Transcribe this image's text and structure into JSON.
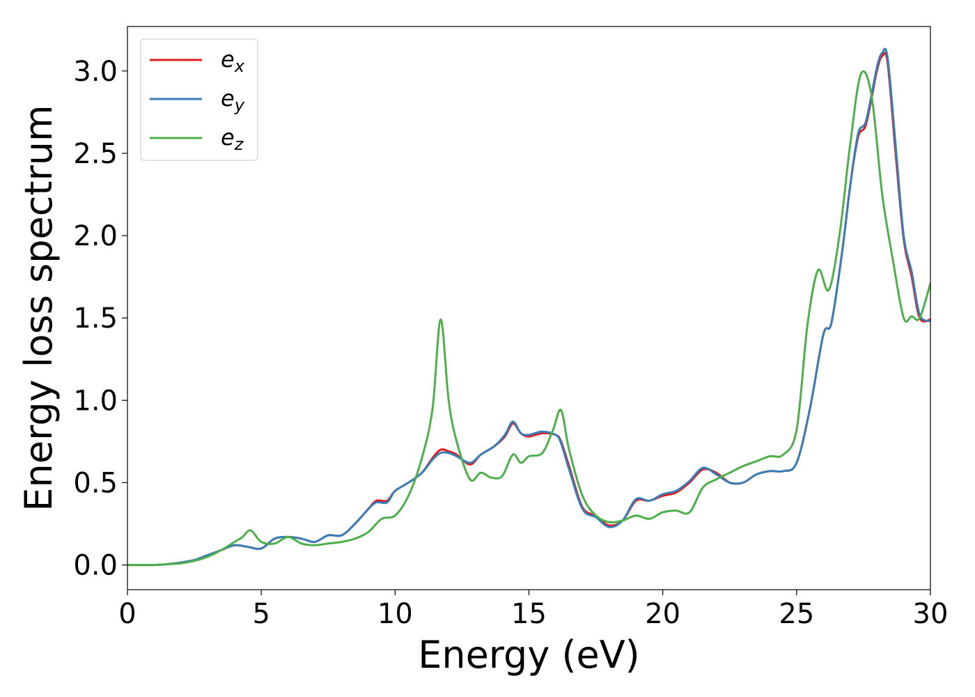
{
  "chart_data": {
    "type": "line",
    "xlabel": "Energy (eV)",
    "ylabel": "Energy loss spectrum",
    "xlim": [
      0,
      30
    ],
    "ylim": [
      -0.15,
      3.27
    ],
    "xticks": [
      "0",
      "5",
      "10",
      "15",
      "20",
      "25",
      "30"
    ],
    "yticks": [
      "0.0",
      "0.5",
      "1.0",
      "1.5",
      "2.0",
      "2.5",
      "3.0"
    ],
    "grid": false,
    "legend_position": "top-left",
    "series": [
      {
        "name": "e",
        "sub": "x",
        "color": "#e41a1c",
        "x": [
          0,
          1,
          1.5,
          2,
          2.5,
          3,
          3.5,
          4,
          4.5,
          5,
          5.5,
          6,
          6.5,
          7,
          7.5,
          8,
          8.5,
          9,
          9.3,
          9.7,
          10,
          10.5,
          11,
          11.4,
          11.7,
          12,
          12.3,
          12.8,
          13.2,
          13.7,
          14.1,
          14.4,
          14.7,
          15,
          15.5,
          16,
          16.2,
          16.5,
          17,
          17.5,
          18,
          18.5,
          19,
          19.5,
          20,
          20.5,
          21,
          21.5,
          22,
          22.5,
          23,
          23.5,
          24,
          24.5,
          25,
          25.5,
          26,
          26.3,
          26.7,
          27,
          27.3,
          27.6,
          28,
          28.2,
          28.4,
          28.7,
          29,
          29.3,
          29.6,
          30
        ],
        "y": [
          0,
          0,
          0.005,
          0.015,
          0.03,
          0.06,
          0.09,
          0.12,
          0.11,
          0.1,
          0.16,
          0.17,
          0.16,
          0.14,
          0.18,
          0.18,
          0.25,
          0.34,
          0.39,
          0.39,
          0.45,
          0.5,
          0.56,
          0.65,
          0.7,
          0.69,
          0.67,
          0.61,
          0.67,
          0.72,
          0.78,
          0.86,
          0.8,
          0.78,
          0.8,
          0.79,
          0.75,
          0.6,
          0.35,
          0.3,
          0.24,
          0.27,
          0.39,
          0.39,
          0.42,
          0.44,
          0.5,
          0.58,
          0.56,
          0.5,
          0.5,
          0.55,
          0.57,
          0.57,
          0.62,
          0.95,
          1.4,
          1.47,
          1.9,
          2.3,
          2.6,
          2.68,
          3.0,
          3.09,
          3.05,
          2.5,
          1.98,
          1.75,
          1.5,
          1.49
        ]
      },
      {
        "name": "e",
        "sub": "y",
        "color": "#377eb8",
        "x": [
          0,
          1,
          1.5,
          2,
          2.5,
          3,
          3.5,
          4,
          4.5,
          5,
          5.5,
          6,
          6.5,
          7,
          7.5,
          8,
          8.5,
          9,
          9.3,
          9.7,
          10,
          10.5,
          11,
          11.4,
          11.7,
          12,
          12.3,
          12.8,
          13.2,
          13.7,
          14.1,
          14.4,
          14.7,
          15,
          15.5,
          16,
          16.2,
          16.5,
          17,
          17.5,
          18,
          18.5,
          19,
          19.5,
          20,
          20.5,
          21,
          21.5,
          22,
          22.5,
          23,
          23.5,
          24,
          24.5,
          25,
          25.5,
          26,
          26.3,
          26.7,
          27,
          27.3,
          27.6,
          28,
          28.2,
          28.4,
          28.7,
          29,
          29.3,
          29.6,
          30
        ],
        "y": [
          0,
          0,
          0.005,
          0.015,
          0.03,
          0.06,
          0.09,
          0.12,
          0.11,
          0.1,
          0.16,
          0.17,
          0.16,
          0.14,
          0.18,
          0.18,
          0.25,
          0.34,
          0.38,
          0.38,
          0.45,
          0.5,
          0.56,
          0.64,
          0.68,
          0.68,
          0.66,
          0.62,
          0.67,
          0.72,
          0.79,
          0.87,
          0.8,
          0.79,
          0.81,
          0.79,
          0.74,
          0.58,
          0.34,
          0.29,
          0.23,
          0.27,
          0.4,
          0.39,
          0.43,
          0.45,
          0.51,
          0.59,
          0.55,
          0.5,
          0.5,
          0.55,
          0.57,
          0.57,
          0.62,
          0.95,
          1.4,
          1.47,
          1.9,
          2.3,
          2.62,
          2.7,
          3.02,
          3.11,
          3.08,
          2.55,
          2.0,
          1.78,
          1.52,
          1.48
        ]
      },
      {
        "name": "e",
        "sub": "z",
        "color": "#4daf4a",
        "x": [
          0,
          1,
          1.5,
          2,
          2.5,
          3,
          3.5,
          4,
          4.3,
          4.6,
          5,
          5.5,
          6,
          6.5,
          7,
          7.5,
          8,
          8.5,
          9,
          9.5,
          10,
          10.5,
          11,
          11.4,
          11.7,
          12,
          12.3,
          12.8,
          13.2,
          13.6,
          14,
          14.4,
          14.7,
          15,
          15.5,
          15.9,
          16.2,
          16.5,
          17,
          17.5,
          18,
          18.5,
          19,
          19.5,
          20,
          20.5,
          21,
          21.5,
          22,
          22.5,
          23,
          23.5,
          24,
          24.5,
          25,
          25.4,
          25.8,
          26.2,
          26.6,
          27,
          27.4,
          27.8,
          28.2,
          28.6,
          29,
          29.3,
          29.6,
          30
        ],
        "y": [
          0,
          0,
          0.005,
          0.01,
          0.025,
          0.05,
          0.09,
          0.14,
          0.17,
          0.21,
          0.14,
          0.13,
          0.17,
          0.13,
          0.12,
          0.13,
          0.14,
          0.16,
          0.2,
          0.28,
          0.3,
          0.42,
          0.65,
          0.95,
          1.49,
          1.0,
          0.75,
          0.52,
          0.56,
          0.53,
          0.54,
          0.67,
          0.62,
          0.66,
          0.68,
          0.82,
          0.94,
          0.7,
          0.42,
          0.3,
          0.26,
          0.27,
          0.3,
          0.28,
          0.32,
          0.33,
          0.32,
          0.47,
          0.52,
          0.56,
          0.6,
          0.63,
          0.66,
          0.67,
          0.82,
          1.45,
          1.79,
          1.67,
          2.0,
          2.55,
          2.98,
          2.85,
          2.25,
          1.85,
          1.5,
          1.51,
          1.5,
          1.71
        ]
      }
    ]
  }
}
